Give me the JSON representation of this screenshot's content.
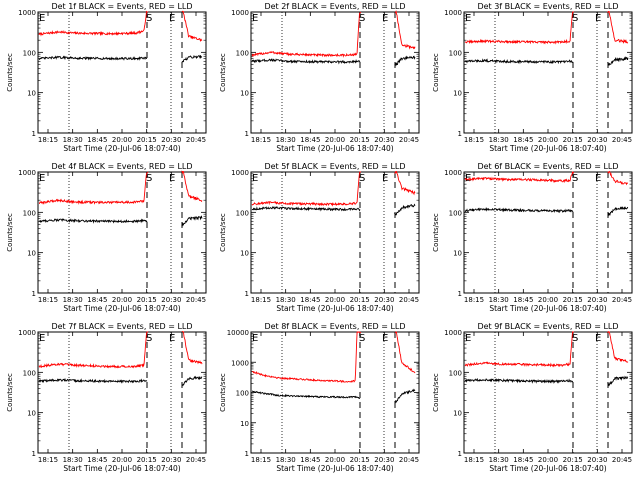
{
  "chart_data": [
    {
      "type": "line",
      "title": "Det 1f BLACK = Events, RED = LLD",
      "xlabel": "Start Time (20-Jul-06 18:07:40)",
      "ylabel": "Counts/sec",
      "yscale": "log",
      "ylim": [
        1,
        1000
      ],
      "yticks": [
        "1",
        "10",
        "100",
        "1000"
      ],
      "xlim": [
        "18:07:40",
        "20:47:00"
      ],
      "xticks": [
        "18:15",
        "18:30",
        "18:45",
        "20:00",
        "20:15",
        "20:30",
        "20:45"
      ],
      "dotted_lines": [
        "18:30",
        "20:26"
      ],
      "dashed_lines": [
        "20:14",
        "20:37"
      ],
      "markers": [
        {
          "label": "S",
          "at": "20:14"
        },
        {
          "label": "E",
          "at": "20:26"
        },
        {
          "label": "E",
          "at": "18:09"
        }
      ],
      "series": [
        {
          "color": "#ff0000",
          "x": [
            "18:08",
            "18:30",
            "18:50",
            "19:30",
            "20:00",
            "20:10",
            "20:13",
            "20:38",
            "20:40",
            "20:45"
          ],
          "values": [
            280,
            320,
            300,
            290,
            300,
            340,
            1000,
            1000,
            250,
            200
          ]
        },
        {
          "color": "#000000",
          "x": [
            "18:08",
            "18:30",
            "18:50",
            "19:30",
            "20:00",
            "20:10",
            "20:13",
            "20:38",
            "20:40",
            "20:45"
          ],
          "values": [
            70,
            75,
            72,
            70,
            70,
            72,
            70,
            60,
            75,
            80
          ]
        }
      ]
    },
    {
      "type": "line",
      "title": "Det 2f BLACK = Events, RED = LLD",
      "xlabel": "Start Time (20-Jul-06 18:07:40)",
      "ylabel": "Counts/sec",
      "yscale": "log",
      "ylim": [
        1,
        1000
      ],
      "yticks": [
        "1",
        "10",
        "100",
        "1000"
      ],
      "xlim": [
        "18:07:40",
        "20:47:00"
      ],
      "xticks": [
        "18:15",
        "18:30",
        "18:45",
        "20:00",
        "20:15",
        "20:30",
        "20:45"
      ],
      "dotted_lines": [
        "18:30",
        "20:26"
      ],
      "dashed_lines": [
        "20:14",
        "20:37"
      ],
      "markers": [
        {
          "label": "S",
          "at": "20:14"
        },
        {
          "label": "E",
          "at": "20:26"
        },
        {
          "label": "E",
          "at": "18:09"
        }
      ],
      "series": [
        {
          "color": "#ff0000",
          "x": [
            "18:08",
            "18:30",
            "18:50",
            "19:30",
            "20:00",
            "20:10",
            "20:13",
            "20:38",
            "20:40",
            "20:45"
          ],
          "values": [
            85,
            100,
            90,
            85,
            85,
            90,
            1000,
            1000,
            150,
            130
          ]
        },
        {
          "color": "#000000",
          "x": [
            "18:08",
            "18:30",
            "18:50",
            "19:30",
            "20:00",
            "20:10",
            "20:13",
            "20:38",
            "20:40",
            "20:45"
          ],
          "values": [
            60,
            65,
            60,
            58,
            58,
            60,
            58,
            50,
            70,
            75
          ]
        }
      ]
    },
    {
      "type": "line",
      "title": "Det 3f BLACK = Events, RED = LLD",
      "xlabel": "Start Time (20-Jul-06 18:07:40)",
      "ylabel": "Counts/sec",
      "yscale": "log",
      "ylim": [
        1,
        1000
      ],
      "yticks": [
        "1",
        "10",
        "100",
        "1000"
      ],
      "xlim": [
        "18:07:40",
        "20:47:00"
      ],
      "xticks": [
        "18:15",
        "18:30",
        "18:45",
        "20:00",
        "20:15",
        "20:30",
        "20:45"
      ],
      "dotted_lines": [
        "18:30",
        "20:26"
      ],
      "dashed_lines": [
        "20:14",
        "20:37"
      ],
      "markers": [
        {
          "label": "S",
          "at": "20:14"
        },
        {
          "label": "E",
          "at": "20:26"
        },
        {
          "label": "E",
          "at": "18:09"
        }
      ],
      "series": [
        {
          "color": "#ff0000",
          "x": [
            "18:08",
            "18:30",
            "18:50",
            "19:30",
            "20:00",
            "20:10",
            "20:13",
            "20:38",
            "20:40",
            "20:45"
          ],
          "values": [
            180,
            190,
            185,
            180,
            180,
            190,
            1000,
            1000,
            200,
            180
          ]
        },
        {
          "color": "#000000",
          "x": [
            "18:08",
            "18:30",
            "18:50",
            "19:30",
            "20:00",
            "20:10",
            "20:13",
            "20:38",
            "20:40",
            "20:45"
          ],
          "values": [
            60,
            62,
            60,
            58,
            58,
            60,
            58,
            50,
            65,
            70
          ]
        }
      ]
    },
    {
      "type": "line",
      "title": "Det 4f BLACK = Events, RED = LLD",
      "xlabel": "Start Time (20-Jul-06 18:07:40)",
      "ylabel": "Counts/sec",
      "yscale": "log",
      "ylim": [
        1,
        1000
      ],
      "yticks": [
        "1",
        "10",
        "100",
        "1000"
      ],
      "xlim": [
        "18:07:40",
        "20:47:00"
      ],
      "xticks": [
        "18:15",
        "18:30",
        "18:45",
        "20:00",
        "20:15",
        "20:30",
        "20:45"
      ],
      "dotted_lines": [
        "18:30",
        "20:26"
      ],
      "dashed_lines": [
        "20:14",
        "20:37"
      ],
      "markers": [
        {
          "label": "S",
          "at": "20:14"
        },
        {
          "label": "E",
          "at": "20:26"
        },
        {
          "label": "E",
          "at": "18:09"
        }
      ],
      "series": [
        {
          "color": "#ff0000",
          "x": [
            "18:08",
            "18:30",
            "18:50",
            "19:30",
            "20:00",
            "20:10",
            "20:13",
            "20:38",
            "20:40",
            "20:45"
          ],
          "values": [
            170,
            200,
            180,
            175,
            180,
            190,
            1000,
            1000,
            250,
            200
          ]
        },
        {
          "color": "#000000",
          "x": [
            "18:08",
            "18:30",
            "18:50",
            "19:30",
            "20:00",
            "20:10",
            "20:13",
            "20:38",
            "20:40",
            "20:45"
          ],
          "values": [
            60,
            65,
            62,
            60,
            60,
            62,
            60,
            50,
            70,
            75
          ]
        }
      ]
    },
    {
      "type": "line",
      "title": "Det 5f BLACK = Events, RED = LLD",
      "xlabel": "Start Time (20-Jul-06 18:07:40)",
      "ylabel": "Counts/sec",
      "yscale": "log",
      "ylim": [
        1,
        1000
      ],
      "yticks": [
        "1",
        "10",
        "100",
        "1000"
      ],
      "xlim": [
        "18:07:40",
        "20:47:00"
      ],
      "xticks": [
        "18:15",
        "18:30",
        "18:45",
        "20:00",
        "20:15",
        "20:30",
        "20:45"
      ],
      "dotted_lines": [
        "18:30",
        "20:26"
      ],
      "dashed_lines": [
        "20:14",
        "20:37"
      ],
      "markers": [
        {
          "label": "S",
          "at": "20:14"
        },
        {
          "label": "E",
          "at": "20:26"
        },
        {
          "label": "E",
          "at": "18:09"
        }
      ],
      "series": [
        {
          "color": "#ff0000",
          "x": [
            "18:08",
            "18:30",
            "18:50",
            "19:30",
            "20:00",
            "20:10",
            "20:13",
            "20:38",
            "20:40",
            "20:45"
          ],
          "values": [
            160,
            175,
            165,
            160,
            160,
            170,
            1000,
            1000,
            400,
            300
          ]
        },
        {
          "color": "#000000",
          "x": [
            "18:08",
            "18:30",
            "18:50",
            "19:30",
            "20:00",
            "20:10",
            "20:13",
            "20:38",
            "20:40",
            "20:45"
          ],
          "values": [
            120,
            130,
            125,
            120,
            118,
            122,
            118,
            90,
            130,
            150
          ]
        }
      ]
    },
    {
      "type": "line",
      "title": "Det 6f BLACK = Events, RED = LLD",
      "xlabel": "Start Time (20-Jul-06 18:07:40)",
      "ylabel": "Counts/sec",
      "yscale": "log",
      "ylim": [
        1,
        1000
      ],
      "yticks": [
        "1",
        "10",
        "100",
        "1000"
      ],
      "xlim": [
        "18:07:40",
        "20:47:00"
      ],
      "xticks": [
        "18:15",
        "18:30",
        "18:45",
        "20:00",
        "20:15",
        "20:30",
        "20:45"
      ],
      "dotted_lines": [
        "18:30",
        "20:26"
      ],
      "dashed_lines": [
        "20:14",
        "20:37"
      ],
      "markers": [
        {
          "label": "S",
          "at": "20:14"
        },
        {
          "label": "E",
          "at": "20:26"
        },
        {
          "label": "E",
          "at": "18:09"
        }
      ],
      "series": [
        {
          "color": "#ff0000",
          "x": [
            "18:08",
            "18:30",
            "18:50",
            "19:30",
            "20:00",
            "20:10",
            "20:13",
            "20:38",
            "20:40",
            "20:45"
          ],
          "values": [
            650,
            700,
            660,
            640,
            600,
            620,
            1000,
            1000,
            600,
            500
          ]
        },
        {
          "color": "#000000",
          "x": [
            "18:08",
            "18:30",
            "18:50",
            "19:30",
            "20:00",
            "20:10",
            "20:13",
            "20:38",
            "20:40",
            "20:45"
          ],
          "values": [
            110,
            120,
            115,
            110,
            108,
            112,
            108,
            90,
            120,
            130
          ]
        }
      ]
    },
    {
      "type": "line",
      "title": "Det 7f BLACK = Events, RED = LLD",
      "xlabel": "Start Time (20-Jul-06 18:07:40)",
      "ylabel": "Counts/sec",
      "yscale": "log",
      "ylim": [
        1,
        1000
      ],
      "yticks": [
        "1",
        "10",
        "100",
        "1000"
      ],
      "xlim": [
        "18:07:40",
        "20:47:00"
      ],
      "xticks": [
        "18:15",
        "18:30",
        "18:45",
        "20:00",
        "20:15",
        "20:30",
        "20:45"
      ],
      "dotted_lines": [
        "18:30",
        "20:26"
      ],
      "dashed_lines": [
        "20:14",
        "20:37"
      ],
      "markers": [
        {
          "label": "S",
          "at": "20:14"
        },
        {
          "label": "E",
          "at": "20:26"
        },
        {
          "label": "E",
          "at": "18:09"
        }
      ],
      "series": [
        {
          "color": "#ff0000",
          "x": [
            "18:08",
            "18:30",
            "18:50",
            "19:30",
            "20:00",
            "20:10",
            "20:13",
            "20:38",
            "20:40",
            "20:45"
          ],
          "values": [
            140,
            160,
            150,
            140,
            140,
            150,
            1000,
            1000,
            200,
            170
          ]
        },
        {
          "color": "#000000",
          "x": [
            "18:08",
            "18:30",
            "18:50",
            "19:30",
            "20:00",
            "20:10",
            "20:13",
            "20:38",
            "20:40",
            "20:45"
          ],
          "values": [
            60,
            65,
            62,
            60,
            60,
            62,
            60,
            50,
            70,
            75
          ]
        }
      ]
    },
    {
      "type": "line",
      "title": "Det 8f BLACK = Events, RED = LLD",
      "xlabel": "Start Time (20-Jul-06 18:07:40)",
      "ylabel": "Counts/sec",
      "yscale": "log",
      "ylim": [
        1,
        10000
      ],
      "yticks": [
        "1",
        "10",
        "100",
        "1000",
        "10000"
      ],
      "xlim": [
        "18:07:40",
        "20:47:00"
      ],
      "xticks": [
        "18:15",
        "18:30",
        "18:45",
        "20:00",
        "20:15",
        "20:30",
        "20:45"
      ],
      "dotted_lines": [
        "18:30",
        "20:26"
      ],
      "dashed_lines": [
        "20:14",
        "20:37"
      ],
      "markers": [
        {
          "label": "S",
          "at": "20:14"
        },
        {
          "label": "E",
          "at": "20:26"
        },
        {
          "label": "E",
          "at": "18:09"
        }
      ],
      "series": [
        {
          "color": "#ff0000",
          "x": [
            "18:08",
            "18:20",
            "18:40",
            "19:30",
            "20:00",
            "20:08",
            "20:10",
            "20:38",
            "20:40",
            "20:45"
          ],
          "values": [
            500,
            380,
            300,
            250,
            230,
            240,
            10000,
            10000,
            1000,
            450
          ]
        },
        {
          "color": "#000000",
          "x": [
            "18:08",
            "18:20",
            "18:40",
            "19:30",
            "20:00",
            "20:08",
            "20:10",
            "20:38",
            "20:40",
            "20:45"
          ],
          "values": [
            110,
            95,
            80,
            72,
            70,
            72,
            70,
            50,
            90,
            120
          ]
        }
      ]
    },
    {
      "type": "line",
      "title": "Det 9f BLACK = Events, RED = LLD",
      "xlabel": "Start Time (20-Jul-06 18:07:40)",
      "ylabel": "Counts/sec",
      "yscale": "log",
      "ylim": [
        1,
        1000
      ],
      "yticks": [
        "1",
        "10",
        "100",
        "1000"
      ],
      "xlim": [
        "18:07:40",
        "20:47:00"
      ],
      "xticks": [
        "18:15",
        "18:30",
        "18:45",
        "20:00",
        "20:15",
        "20:30",
        "20:45"
      ],
      "dotted_lines": [
        "18:30",
        "20:26"
      ],
      "dashed_lines": [
        "20:14",
        "20:37"
      ],
      "markers": [
        {
          "label": "S",
          "at": "20:14"
        },
        {
          "label": "E",
          "at": "20:26"
        },
        {
          "label": "E",
          "at": "18:09"
        }
      ],
      "series": [
        {
          "color": "#ff0000",
          "x": [
            "18:08",
            "18:30",
            "18:50",
            "19:30",
            "20:00",
            "20:10",
            "20:13",
            "20:38",
            "20:40",
            "20:45"
          ],
          "values": [
            150,
            170,
            160,
            155,
            150,
            160,
            1000,
            1000,
            220,
            180
          ]
        },
        {
          "color": "#000000",
          "x": [
            "18:08",
            "18:30",
            "18:50",
            "19:30",
            "20:00",
            "20:10",
            "20:13",
            "20:38",
            "20:40",
            "20:45"
          ],
          "values": [
            62,
            66,
            63,
            60,
            60,
            62,
            60,
            50,
            70,
            75
          ]
        }
      ]
    }
  ]
}
